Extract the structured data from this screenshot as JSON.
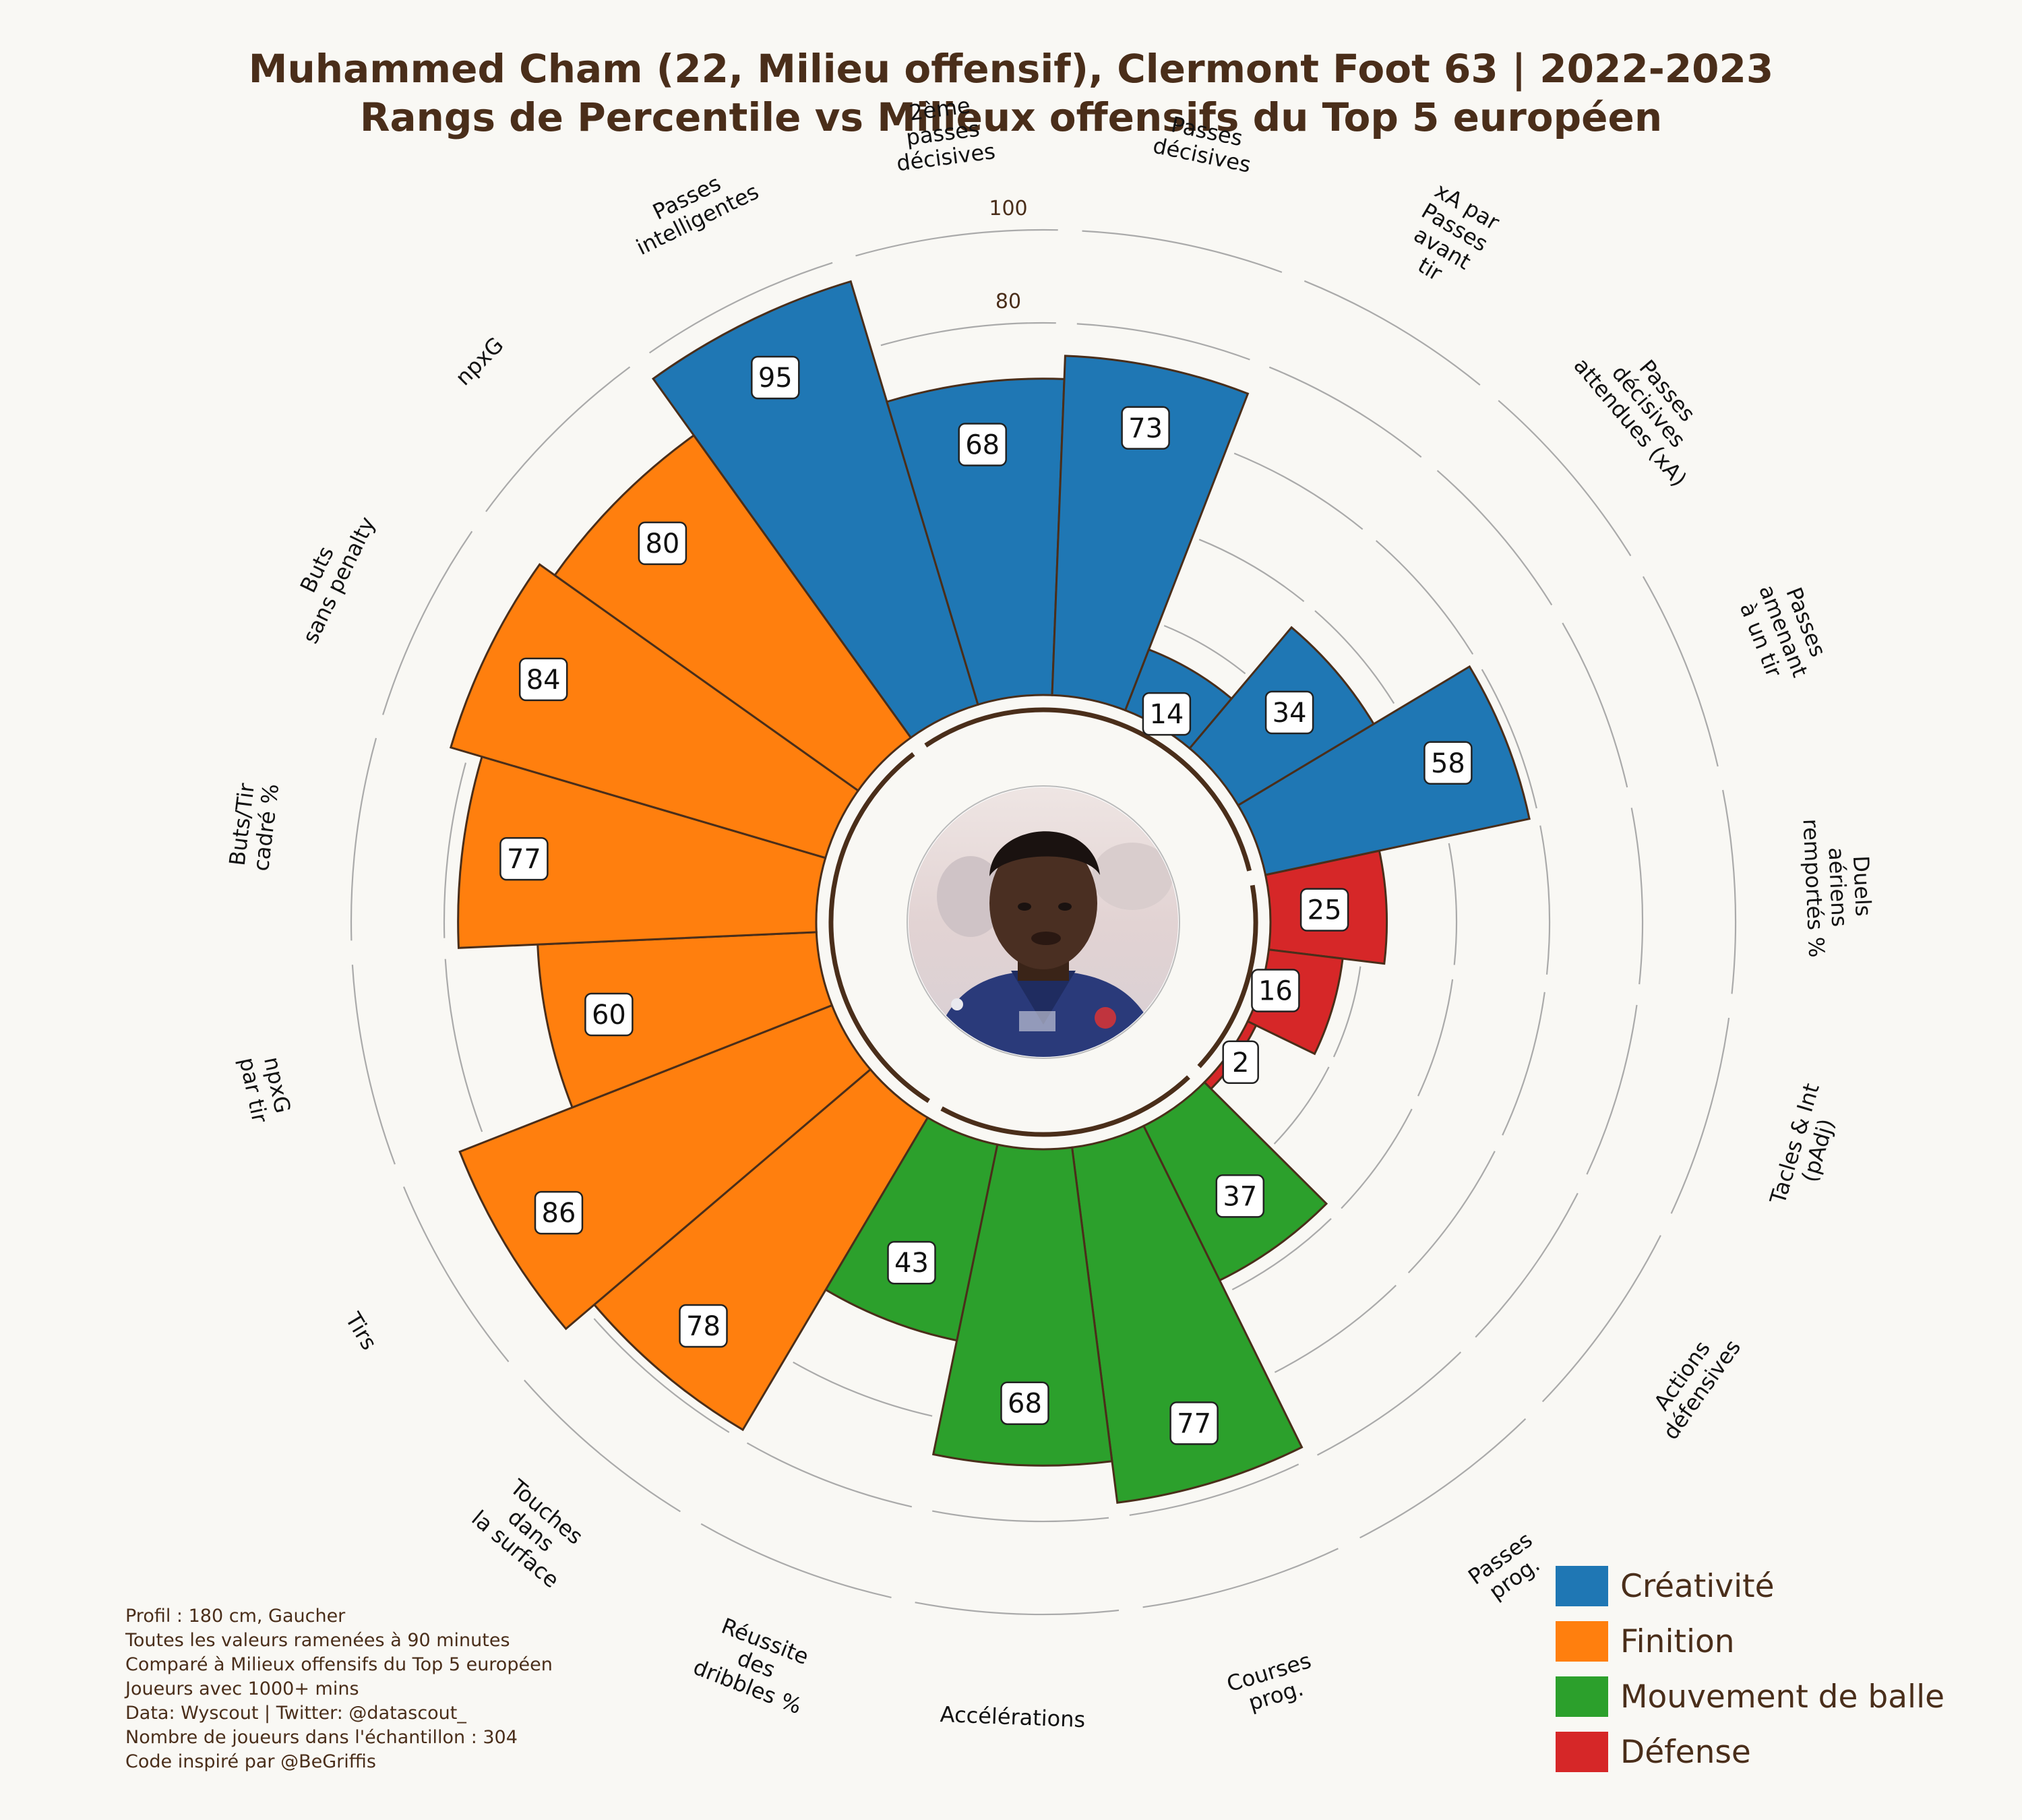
{
  "title": {
    "line1": "Muhammed Cham (22, Milieu offensif), Clermont Foot 63 | 2022-2023",
    "line2": "Rangs de Percentile vs Milieux offensifs du Top 5 européen"
  },
  "footer": [
    "Profil : 180 cm, Gaucher",
    "Toutes les valeurs ramenées à 90 minutes",
    "Comparé à Milieux offensifs du Top 5 européen",
    "Joueurs avec 1000+ mins",
    "Data: Wyscout | Twitter: @datascout_",
    "Nombre de joueurs dans l'échantillon : 304",
    "Code inspiré par @BeGriffis"
  ],
  "legend": [
    {
      "label": "Créativité",
      "color": "#1f77b4"
    },
    {
      "label": "Finition",
      "color": "#ff7f0e"
    },
    {
      "label": "Mouvement de balle",
      "color": "#2ca02c"
    },
    {
      "label": "Défense",
      "color": "#d62728"
    }
  ],
  "player_photo": "player-photo-icon",
  "chart_data": {
    "type": "polar-bar",
    "radial_axis": {
      "min": 0,
      "max": 100,
      "ticks": [
        0,
        20,
        40,
        60,
        80,
        100
      ],
      "tick_labels": [
        "0",
        "20",
        "40",
        "60",
        "80",
        "100"
      ]
    },
    "series": [
      {
        "name": "Créativité",
        "color": "#1f77b4"
      },
      {
        "name": "Finition",
        "color": "#ff7f0e"
      },
      {
        "name": "Mouvement de balle",
        "color": "#2ca02c"
      },
      {
        "name": "Défense",
        "color": "#d62728"
      }
    ],
    "categories": [
      {
        "label": "Duels\naériens\nremportés %",
        "value": 25,
        "group": "Défense"
      },
      {
        "label": "Tacles & Int\n(pAdj)",
        "value": 16,
        "group": "Défense"
      },
      {
        "label": "Actions\ndéfensives",
        "value": 2,
        "group": "Défense"
      },
      {
        "label": "Passes\nprog.",
        "value": 37,
        "group": "Mouvement de balle"
      },
      {
        "label": "Courses\nprog.",
        "value": 77,
        "group": "Mouvement de balle"
      },
      {
        "label": "Accélérations",
        "value": 68,
        "group": "Mouvement de balle"
      },
      {
        "label": "Réussite\ndes\ndribbles %",
        "value": 43,
        "group": "Mouvement de balle"
      },
      {
        "label": "Touches\ndans\nla surface",
        "value": 78,
        "group": "Finition"
      },
      {
        "label": "Tirs",
        "value": 86,
        "group": "Finition"
      },
      {
        "label": "npxG\npar tir",
        "value": 60,
        "group": "Finition"
      },
      {
        "label": "Buts/Tir\ncadré %",
        "value": 77,
        "group": "Finition"
      },
      {
        "label": "Buts\nsans penalty",
        "value": 84,
        "group": "Finition"
      },
      {
        "label": "npxG",
        "value": 80,
        "group": "Finition"
      },
      {
        "label": "Passes\nintelligentes",
        "value": 95,
        "group": "Créativité"
      },
      {
        "label": "2ème\npasses\ndécisives",
        "value": 68,
        "group": "Créativité"
      },
      {
        "label": "Passes\ndécisives",
        "value": 73,
        "group": "Créativité"
      },
      {
        "label": "xA par\nPasses\navant\ntir",
        "value": 14,
        "group": "Créativité"
      },
      {
        "label": "Passes\ndécisives\nattendues (xA)",
        "value": 34,
        "group": "Créativité"
      },
      {
        "label": "Passes\namenant\nà un tir",
        "value": 58,
        "group": "Créativité"
      }
    ]
  }
}
